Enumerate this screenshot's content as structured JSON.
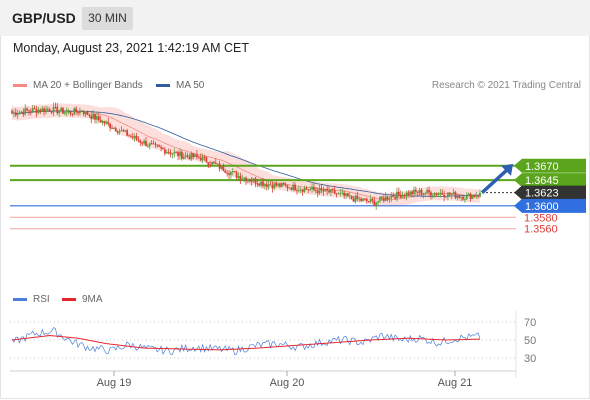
{
  "header": {
    "pair": "GBP/USD",
    "timeframe": "30 MIN"
  },
  "timestamp": "Monday, August 23, 2021 1:42:19 AM CET",
  "legend": {
    "main": [
      {
        "label": "MA 20 + Bollinger Bands",
        "color": "#f4897f"
      },
      {
        "label": "MA 50",
        "color": "#2f5d9e"
      }
    ],
    "credit": "Research © 2021 Trading Central",
    "rsi": [
      {
        "label": "RSI",
        "color": "#4a7fd8"
      },
      {
        "label": "9MA",
        "color": "#e8242b"
      }
    ]
  },
  "colors": {
    "up": "#5aa13a",
    "down": "#d84038",
    "band": "#fcd9d6",
    "ma20": "#f4897f",
    "ma50": "#2f5d9e",
    "resistance": "#5aa51c",
    "support": "#2f6fe0",
    "support_minor": "#f4a3a0",
    "current": "#333333",
    "arrow": "#2d5fb3"
  },
  "chart_data": [
    {
      "type": "candlestick",
      "title": "GBP/USD",
      "ylim": [
        1.3535,
        1.3785
      ],
      "x_ticks": [
        "Aug 19",
        "Aug 20",
        "Aug 21"
      ],
      "price_levels": [
        {
          "label": "1.3670",
          "value": 1.367,
          "kind": "resistance"
        },
        {
          "label": "1.3645",
          "value": 1.3645,
          "kind": "resistance"
        },
        {
          "label": "1.3623",
          "value": 1.3623,
          "kind": "current"
        },
        {
          "label": "1.3600",
          "value": 1.36,
          "kind": "support"
        },
        {
          "label": "1.3580",
          "value": 1.358,
          "kind": "support_minor"
        },
        {
          "label": "1.3560",
          "value": 1.356,
          "kind": "support_minor"
        }
      ],
      "close_keypoints": [
        [
          0,
          1.3762
        ],
        [
          10,
          1.3767
        ],
        [
          20,
          1.3769
        ],
        [
          30,
          1.3763
        ],
        [
          37,
          1.3766
        ],
        [
          45,
          1.3752
        ],
        [
          55,
          1.3735
        ],
        [
          65,
          1.3718
        ],
        [
          75,
          1.3703
        ],
        [
          90,
          1.3688
        ],
        [
          100,
          1.3684
        ],
        [
          110,
          1.3668
        ],
        [
          120,
          1.3652
        ],
        [
          135,
          1.3638
        ],
        [
          150,
          1.3632
        ],
        [
          170,
          1.3623
        ],
        [
          180,
          1.3613
        ],
        [
          192,
          1.3606
        ],
        [
          200,
          1.3617
        ],
        [
          215,
          1.3624
        ],
        [
          230,
          1.3621
        ],
        [
          240,
          1.3616
        ],
        [
          248,
          1.362
        ]
      ],
      "candle_count": 249,
      "projection": {
        "from_value": 1.3623,
        "to_value": 1.3668
      }
    },
    {
      "type": "line",
      "title": "RSI",
      "ylim": [
        20,
        80
      ],
      "y_ticks": [
        70,
        50,
        30
      ],
      "series": [
        {
          "name": "RSI",
          "keypoints": [
            [
              0,
              47
            ],
            [
              12,
              57
            ],
            [
              22,
              60
            ],
            [
              32,
              48
            ],
            [
              40,
              42
            ],
            [
              52,
              38
            ],
            [
              62,
              45
            ],
            [
              72,
              40
            ],
            [
              84,
              38
            ],
            [
              96,
              42
            ],
            [
              108,
              40
            ],
            [
              118,
              38
            ],
            [
              130,
              44
            ],
            [
              140,
              46
            ],
            [
              152,
              42
            ],
            [
              166,
              48
            ],
            [
              176,
              50
            ],
            [
              186,
              47
            ],
            [
              196,
              55
            ],
            [
              206,
              50
            ],
            [
              216,
              52
            ],
            [
              226,
              47
            ],
            [
              236,
              52
            ],
            [
              248,
              54
            ]
          ]
        },
        {
          "name": "9MA",
          "keypoints": [
            [
              0,
              50
            ],
            [
              20,
              55
            ],
            [
              35,
              52
            ],
            [
              50,
              46
            ],
            [
              70,
              41
            ],
            [
              90,
              40
            ],
            [
              110,
              39
            ],
            [
              130,
              41
            ],
            [
              150,
              44
            ],
            [
              170,
              47
            ],
            [
              190,
              50
            ],
            [
              210,
              52
            ],
            [
              230,
              50
            ],
            [
              248,
              51
            ]
          ]
        }
      ]
    }
  ]
}
